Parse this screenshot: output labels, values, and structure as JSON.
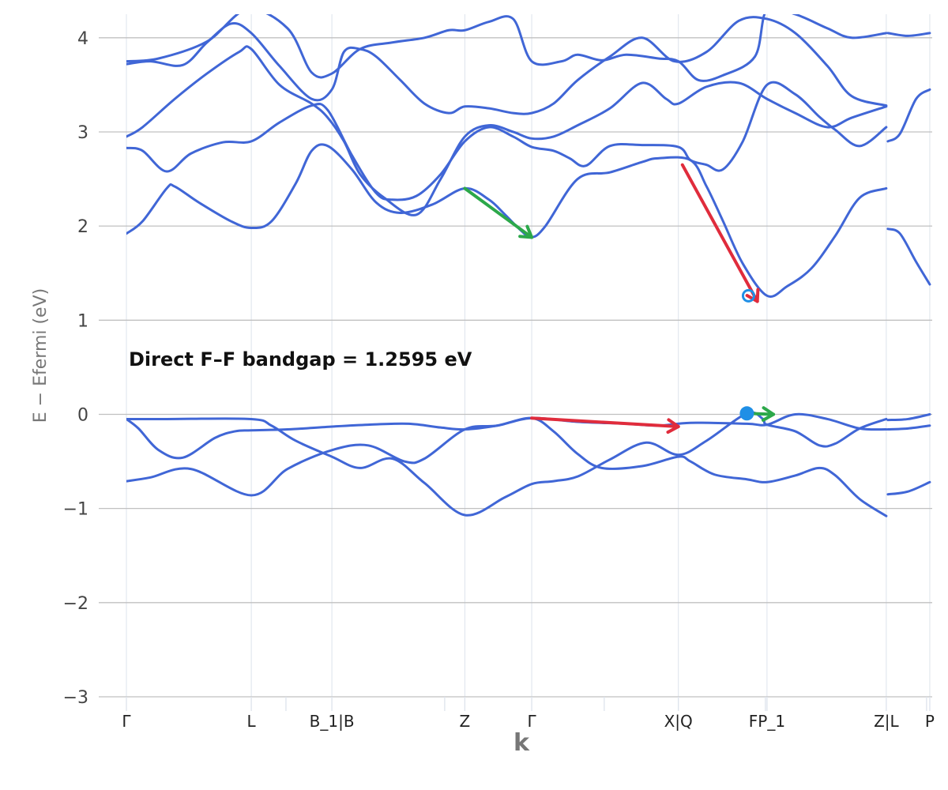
{
  "chart_data": {
    "type": "line",
    "xlabel": "k",
    "ylabel": "E − Efermi (eV)",
    "ylim": [
      -3,
      4.25
    ],
    "yticks": [
      -3,
      -2,
      -1,
      0,
      1,
      2,
      3,
      4
    ],
    "ytick_labels": [
      "−3",
      "−2",
      "−1",
      "0",
      "1",
      "2",
      "3",
      "4"
    ],
    "xlim": [
      0,
      1000
    ],
    "kpoints": [
      {
        "label": "Γ",
        "x": 0
      },
      {
        "label": "L",
        "x": 155
      },
      {
        "label": "B_1|B",
        "x": 255
      },
      {
        "label": "Z",
        "x": 420
      },
      {
        "label": "Γ",
        "x": 503
      },
      {
        "label": "X|Q",
        "x": 685
      },
      {
        "label": "FP_1",
        "x": 795
      },
      {
        "label": "Z|L",
        "x": 943
      },
      {
        "label": "P",
        "x": 997
      }
    ],
    "minor_xticks": [
      198,
      395,
      593,
      793,
      993
    ],
    "grid": true,
    "annotation": "Direct F–F bandgap = 1.2595 eV",
    "colors": {
      "bands": "#4066d6",
      "vbm_arrow": "#e02c3c",
      "cbm_arrow": "#2ca84a",
      "marker": "#1f8fe6",
      "grid_major": "#c0c0c0",
      "grid_minor": "#dde3ec"
    },
    "series": [
      {
        "values": [
          [
            0,
            -0.05
          ],
          [
            15,
            -0.15
          ],
          [
            40,
            -0.38
          ],
          [
            70,
            -0.46
          ],
          [
            110,
            -0.25
          ],
          [
            135,
            -0.18
          ],
          [
            155,
            -0.17
          ],
          [
            200,
            -0.16
          ],
          [
            255,
            -0.13
          ],
          [
            300,
            -0.11
          ],
          [
            350,
            -0.1
          ],
          [
            390,
            -0.14
          ],
          [
            420,
            -0.16
          ],
          [
            460,
            -0.12
          ],
          [
            503,
            -0.04
          ],
          [
            530,
            -0.18
          ],
          [
            560,
            -0.42
          ],
          [
            590,
            -0.57
          ],
          [
            640,
            -0.55
          ],
          [
            685,
            -0.45
          ],
          [
            700,
            -0.5
          ],
          [
            730,
            -0.64
          ],
          [
            770,
            -0.69
          ],
          [
            795,
            -0.72
          ],
          [
            830,
            -0.65
          ],
          [
            860,
            -0.57
          ],
          [
            880,
            -0.65
          ],
          [
            910,
            -0.9
          ],
          [
            943,
            -1.08
          ]
        ]
      },
      {
        "values": [
          [
            0,
            -0.05
          ],
          [
            50,
            -0.05
          ],
          [
            155,
            -0.05
          ],
          [
            180,
            -0.12
          ],
          [
            210,
            -0.28
          ],
          [
            255,
            -0.45
          ],
          [
            290,
            -0.57
          ],
          [
            330,
            -0.47
          ],
          [
            370,
            -0.73
          ],
          [
            420,
            -1.07
          ],
          [
            470,
            -0.88
          ],
          [
            503,
            -0.74
          ],
          [
            530,
            -0.71
          ],
          [
            560,
            -0.66
          ],
          [
            600,
            -0.48
          ],
          [
            645,
            -0.3
          ],
          [
            685,
            -0.43
          ],
          [
            720,
            -0.28
          ],
          [
            770,
            0.01
          ],
          [
            790,
            -0.05
          ],
          [
            795,
            -0.11
          ],
          [
            830,
            -0.18
          ],
          [
            860,
            -0.33
          ],
          [
            880,
            -0.31
          ],
          [
            910,
            -0.15
          ],
          [
            943,
            -0.05
          ]
        ]
      },
      {
        "values": [
          [
            0,
            -0.71
          ],
          [
            30,
            -0.67
          ],
          [
            80,
            -0.58
          ],
          [
            155,
            -0.86
          ],
          [
            200,
            -0.58
          ],
          [
            255,
            -0.38
          ],
          [
            300,
            -0.33
          ],
          [
            345,
            -0.5
          ],
          [
            370,
            -0.47
          ],
          [
            420,
            -0.16
          ],
          [
            460,
            -0.12
          ],
          [
            503,
            -0.04
          ],
          [
            560,
            -0.08
          ],
          [
            620,
            -0.1
          ],
          [
            660,
            -0.12
          ],
          [
            700,
            -0.09
          ],
          [
            770,
            -0.1
          ],
          [
            795,
            -0.11
          ],
          [
            830,
            0.0
          ],
          [
            870,
            -0.05
          ],
          [
            910,
            -0.15
          ],
          [
            943,
            -0.16
          ]
        ]
      },
      {
        "values": [
          [
            0,
            1.92
          ],
          [
            20,
            2.05
          ],
          [
            50,
            2.4
          ],
          [
            60,
            2.42
          ],
          [
            90,
            2.25
          ],
          [
            130,
            2.05
          ],
          [
            155,
            1.98
          ],
          [
            180,
            2.05
          ],
          [
            210,
            2.45
          ],
          [
            230,
            2.8
          ],
          [
            250,
            2.85
          ],
          [
            280,
            2.6
          ],
          [
            310,
            2.25
          ],
          [
            340,
            2.14
          ],
          [
            380,
            2.23
          ],
          [
            420,
            2.4
          ],
          [
            450,
            2.28
          ],
          [
            470,
            2.12
          ],
          [
            490,
            1.95
          ],
          [
            503,
            1.88
          ],
          [
            520,
            2.0
          ],
          [
            560,
            2.5
          ],
          [
            600,
            2.57
          ],
          [
            640,
            2.68
          ],
          [
            660,
            2.72
          ],
          [
            700,
            2.7
          ],
          [
            720,
            2.42
          ],
          [
            740,
            2.06
          ],
          [
            765,
            1.6
          ],
          [
            795,
            1.26
          ],
          [
            820,
            1.36
          ],
          [
            850,
            1.55
          ],
          [
            880,
            1.9
          ],
          [
            910,
            2.3
          ],
          [
            943,
            2.4
          ]
        ]
      },
      {
        "values": [
          [
            0,
            2.83
          ],
          [
            20,
            2.8
          ],
          [
            50,
            2.58
          ],
          [
            80,
            2.77
          ],
          [
            120,
            2.89
          ],
          [
            155,
            2.9
          ],
          [
            190,
            3.1
          ],
          [
            230,
            3.28
          ],
          [
            250,
            3.23
          ],
          [
            280,
            2.75
          ],
          [
            310,
            2.35
          ],
          [
            330,
            2.28
          ],
          [
            360,
            2.32
          ],
          [
            390,
            2.55
          ],
          [
            420,
            2.9
          ],
          [
            450,
            3.05
          ],
          [
            480,
            2.95
          ],
          [
            503,
            2.84
          ],
          [
            530,
            2.8
          ],
          [
            550,
            2.72
          ],
          [
            570,
            2.64
          ],
          [
            600,
            2.85
          ],
          [
            640,
            2.86
          ],
          [
            685,
            2.84
          ],
          [
            700,
            2.7
          ],
          [
            720,
            2.65
          ],
          [
            740,
            2.6
          ],
          [
            765,
            2.9
          ],
          [
            795,
            3.5
          ],
          [
            830,
            3.4
          ],
          [
            860,
            3.16
          ],
          [
            880,
            3.02
          ],
          [
            910,
            2.85
          ],
          [
            943,
            3.05
          ]
        ]
      },
      {
        "values": [
          [
            0,
            2.95
          ],
          [
            20,
            3.05
          ],
          [
            60,
            3.35
          ],
          [
            100,
            3.62
          ],
          [
            140,
            3.85
          ],
          [
            155,
            3.88
          ],
          [
            190,
            3.5
          ],
          [
            230,
            3.3
          ],
          [
            250,
            3.15
          ],
          [
            270,
            2.9
          ],
          [
            290,
            2.55
          ],
          [
            320,
            2.3
          ],
          [
            360,
            2.12
          ],
          [
            390,
            2.5
          ],
          [
            420,
            2.95
          ],
          [
            450,
            3.07
          ],
          [
            480,
            3.0
          ],
          [
            503,
            2.93
          ],
          [
            530,
            2.95
          ],
          [
            560,
            3.07
          ],
          [
            600,
            3.25
          ],
          [
            640,
            3.52
          ],
          [
            670,
            3.35
          ],
          [
            685,
            3.3
          ],
          [
            720,
            3.48
          ],
          [
            760,
            3.52
          ],
          [
            795,
            3.35
          ],
          [
            830,
            3.2
          ],
          [
            870,
            3.05
          ],
          [
            900,
            3.15
          ],
          [
            943,
            3.27
          ]
        ]
      },
      {
        "values": [
          [
            0,
            3.72
          ],
          [
            30,
            3.75
          ],
          [
            70,
            3.71
          ],
          [
            100,
            3.95
          ],
          [
            130,
            4.15
          ],
          [
            155,
            4.05
          ],
          [
            190,
            3.7
          ],
          [
            230,
            3.35
          ],
          [
            255,
            3.45
          ],
          [
            270,
            3.85
          ],
          [
            290,
            3.88
          ],
          [
            310,
            3.8
          ],
          [
            340,
            3.55
          ],
          [
            370,
            3.3
          ],
          [
            400,
            3.2
          ],
          [
            420,
            3.27
          ],
          [
            450,
            3.25
          ],
          [
            480,
            3.2
          ],
          [
            503,
            3.2
          ],
          [
            530,
            3.3
          ],
          [
            560,
            3.55
          ],
          [
            600,
            3.8
          ],
          [
            640,
            4.0
          ],
          [
            680,
            3.75
          ],
          [
            720,
            3.85
          ],
          [
            760,
            4.18
          ],
          [
            795,
            4.2
          ],
          [
            830,
            4.05
          ],
          [
            870,
            3.7
          ],
          [
            900,
            3.38
          ],
          [
            943,
            3.28
          ]
        ]
      },
      {
        "values": [
          [
            0,
            3.75
          ],
          [
            40,
            3.78
          ],
          [
            100,
            3.96
          ],
          [
            150,
            4.3
          ],
          [
            200,
            4.1
          ],
          [
            230,
            3.63
          ],
          [
            255,
            3.62
          ],
          [
            290,
            3.88
          ],
          [
            330,
            3.95
          ],
          [
            370,
            4.0
          ],
          [
            400,
            4.08
          ],
          [
            420,
            4.08
          ],
          [
            450,
            4.17
          ],
          [
            480,
            4.2
          ],
          [
            503,
            3.75
          ],
          [
            540,
            3.75
          ],
          [
            560,
            3.82
          ],
          [
            590,
            3.76
          ],
          [
            620,
            3.82
          ],
          [
            660,
            3.78
          ],
          [
            685,
            3.75
          ],
          [
            710,
            3.55
          ],
          [
            740,
            3.6
          ],
          [
            780,
            3.8
          ],
          [
            795,
            4.3
          ],
          [
            830,
            4.25
          ],
          [
            870,
            4.1
          ],
          [
            900,
            4.0
          ],
          [
            943,
            4.05
          ]
        ]
      },
      {
        "values": [
          [
            945,
            -0.06
          ],
          [
            970,
            -0.05
          ],
          [
            997,
            0.0
          ]
        ]
      },
      {
        "values": [
          [
            945,
            -0.16
          ],
          [
            970,
            -0.15
          ],
          [
            997,
            -0.12
          ]
        ]
      },
      {
        "values": [
          [
            945,
            -0.85
          ],
          [
            970,
            -0.82
          ],
          [
            997,
            -0.72
          ]
        ]
      },
      {
        "values": [
          [
            945,
            1.97
          ],
          [
            960,
            1.92
          ],
          [
            980,
            1.62
          ],
          [
            997,
            1.38
          ]
        ]
      },
      {
        "values": [
          [
            945,
            2.9
          ],
          [
            960,
            2.98
          ],
          [
            980,
            3.35
          ],
          [
            997,
            3.45
          ]
        ]
      },
      {
        "values": [
          [
            945,
            4.05
          ],
          [
            970,
            4.02
          ],
          [
            997,
            4.05
          ]
        ]
      }
    ],
    "arrows": [
      {
        "color": "red",
        "from": [
          503,
          -0.04
        ],
        "to": [
          685,
          -0.13
        ]
      },
      {
        "color": "red",
        "from": [
          690,
          2.65
        ],
        "to": [
          783,
          1.2
        ]
      },
      {
        "color": "green",
        "from": [
          420,
          2.4
        ],
        "to": [
          503,
          1.88
        ]
      },
      {
        "color": "green",
        "from": [
          770,
          0.01
        ],
        "to": [
          803,
          0.0
        ]
      }
    ],
    "markers": [
      {
        "shape": "filled-circle",
        "x": 770,
        "y": 0.01
      },
      {
        "shape": "open-circle",
        "x": 772,
        "y": 1.26
      }
    ]
  }
}
